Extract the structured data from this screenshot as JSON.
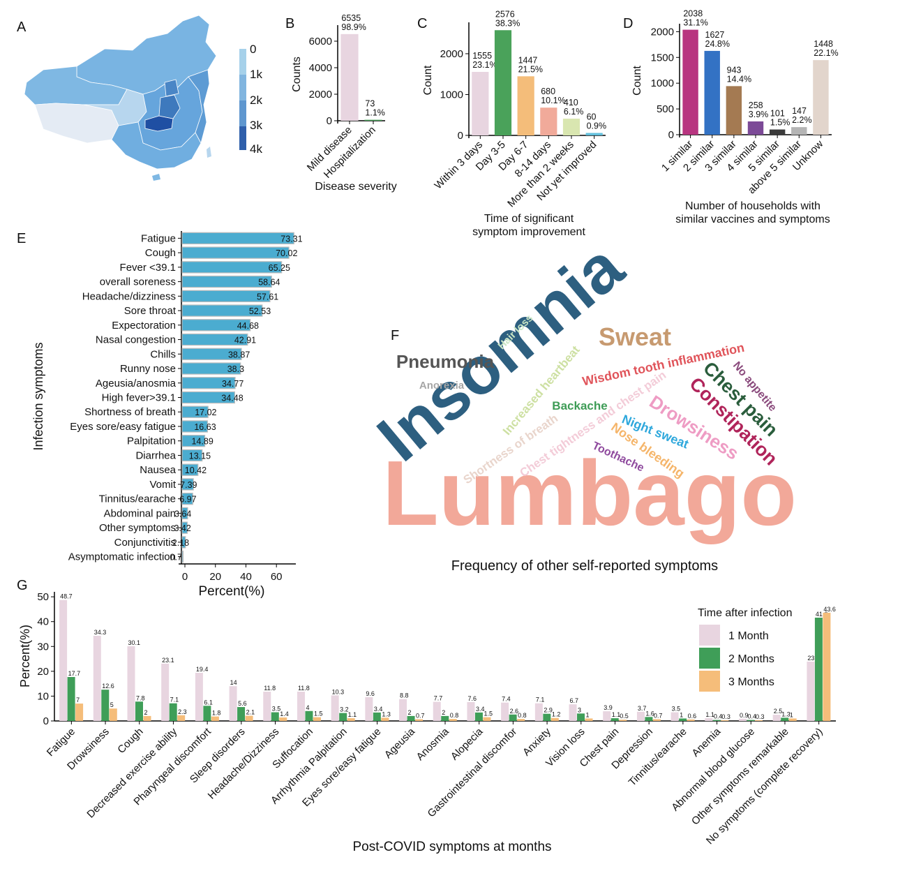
{
  "panels": {
    "A": "A",
    "B": "B",
    "C": "C",
    "D": "D",
    "E": "E",
    "F": "F",
    "G": "G"
  },
  "map": {
    "colorbar_ticks": [
      "0",
      "1k",
      "2k",
      "3k",
      "4k"
    ],
    "colorbar_colors": [
      "#a6d1ea",
      "#81b5df",
      "#5f97cf",
      "#3f79bc",
      "#1f4fa3"
    ]
  },
  "chart_data": [
    {
      "panel": "B",
      "type": "bar",
      "categories": [
        "Mild disease",
        "Hospitalization"
      ],
      "values": [
        6535,
        73
      ],
      "labels": [
        "6535\n98.9%",
        "73\n1.1%"
      ],
      "colors": [
        "#e8d5e0",
        "#4aa25a"
      ],
      "xlabel": "Disease severity",
      "ylabel": "Counts",
      "ylim": [
        0,
        7000
      ],
      "yticks": [
        0,
        2000,
        4000,
        6000
      ],
      "grid": false
    },
    {
      "panel": "C",
      "type": "bar",
      "categories": [
        "Within 3 days",
        "Day 3-5",
        "Day 6-7",
        "8-14 days",
        "More than 2 weeks",
        "Not yet improved"
      ],
      "values": [
        1555,
        2576,
        1447,
        680,
        410,
        60
      ],
      "labels": [
        "1555\n23.1%",
        "2576\n38.3%",
        "1447\n21.5%",
        "680\n10.1%",
        "410\n6.1%",
        "60\n0.9%"
      ],
      "colors": [
        "#e8d5e0",
        "#4aa25a",
        "#f4bd7a",
        "#f1aa9a",
        "#d9e6b0",
        "#64c0dc"
      ],
      "xlabel": "Time of significant\nsymptom improvement",
      "ylabel": "Count",
      "ylim": [
        0,
        2700
      ],
      "yticks": [
        0,
        1000,
        2000
      ],
      "grid": false
    },
    {
      "panel": "D",
      "type": "bar",
      "categories": [
        "1 similar",
        "2 similar",
        "3 similar",
        "4 similar",
        "5 similar",
        "above 5 similar",
        "Unknow"
      ],
      "values": [
        2038,
        1627,
        943,
        258,
        101,
        147,
        1448
      ],
      "labels": [
        "2038\n31.1%",
        "1627\n24.8%",
        "943\n14.4%",
        "258\n3.9%",
        "101\n1.5%",
        "147\n2.2%",
        "1448\n22.1%"
      ],
      "colors": [
        "#b83580",
        "#3372c4",
        "#a47a52",
        "#7c4a97",
        "#3b3b3b",
        "#b5b5b5",
        "#e2d5cc"
      ],
      "xlabel": "Number of households with\nsimilar vaccines and symptoms",
      "ylabel": "Count",
      "ylim": [
        0,
        2100
      ],
      "yticks": [
        0,
        500,
        1000,
        1500,
        2000
      ],
      "grid": false
    },
    {
      "panel": "E",
      "type": "bar",
      "orientation": "horizontal",
      "categories": [
        "Fatigue",
        "Cough",
        "Fever <39.1",
        "overall soreness",
        "Headache/dizziness",
        "Sore throat",
        "Expectoration",
        "Nasal congestion",
        "Chills",
        "Runny nose",
        "Ageusia/anosmia",
        "High fever>39.1",
        "Shortness of breath",
        "Eyes sore/easy fatigue",
        "Palpitation",
        "Diarrhea",
        "Nausea",
        "Vomit",
        "Tinnitus/earache",
        "Abdominal pain",
        "Other symptoms",
        "Conjunctivitis",
        "Asymptomatic infection"
      ],
      "values": [
        73.31,
        70.02,
        65.25,
        58.64,
        57.61,
        52.53,
        44.68,
        42.91,
        38.87,
        38.3,
        34.77,
        34.48,
        17.02,
        16.63,
        14.89,
        13.15,
        10.42,
        7.39,
        6.97,
        3.64,
        3.42,
        2.18,
        0.7
      ],
      "labels": [
        "73.31",
        "70.02",
        "65.25",
        "58.64",
        "57.61",
        "52.53",
        "44.68",
        "42.91",
        "38.87",
        "38.3",
        "34.77",
        "34.48",
        "17.02",
        "16.63",
        "14.89",
        "13.15",
        "10.42",
        "7.39",
        "6.97",
        "3.64",
        "3.42",
        "2.18",
        "0.7"
      ],
      "color": "#4bacd0",
      "xlabel": "Percent(%)",
      "ylabel": "Infection symptoms",
      "xlim": [
        0,
        75
      ],
      "xticks": [
        0,
        20,
        40,
        60
      ],
      "grid": false
    },
    {
      "panel": "F",
      "type": "wordcloud",
      "words": [
        {
          "text": "Lumbago",
          "color": "#f2a899"
        },
        {
          "text": "Insomnia",
          "color": "#2d5f80"
        },
        {
          "text": "Sweat",
          "color": "#c79a70"
        },
        {
          "text": "Pneumonia",
          "color": "#555555"
        },
        {
          "text": "Constipation",
          "color": "#b0245a"
        },
        {
          "text": "Chest pain",
          "color": "#2a5d3c"
        },
        {
          "text": "Drowsiness",
          "color": "#ee9cc4"
        },
        {
          "text": "Wisdom tooth inflammation",
          "color": "#e0545a"
        },
        {
          "text": "Increased heartbeat",
          "color": "#cde0a2"
        },
        {
          "text": "Shortness of breath",
          "color": "#e9d5cc"
        },
        {
          "text": "Chest tightness and chest pain",
          "color": "#f3ccd8"
        },
        {
          "text": "Nose bleeding",
          "color": "#f5b56a"
        },
        {
          "text": "Night sweat",
          "color": "#2fa8dc"
        },
        {
          "text": "Backache",
          "color": "#3e9c56"
        },
        {
          "text": "Toothache",
          "color": "#8f4a9e"
        },
        {
          "text": "No appetite",
          "color": "#8a4a7c"
        },
        {
          "text": "Hair loss",
          "color": "#c9e6c5"
        },
        {
          "text": "Anorexia",
          "color": "#a6a6a6"
        }
      ],
      "title": "Frequency of other self-reported symptoms"
    },
    {
      "panel": "G",
      "type": "bar",
      "categories": [
        "Fatigue",
        "Drowsiness",
        "Cough",
        "Decreased exercise ability",
        "Pharyngeal discomfort",
        "Sleep disorders",
        "Headache/Dizziness",
        "Suffocation",
        "Arrhythmia Palpitation",
        "Eyes sore/easy fatigue",
        "Ageusia",
        "Anosmia",
        "Alopecia",
        "Gastrointestinal discomfor",
        "Anxiety",
        "Vision loss",
        "Chest pain",
        "Depression",
        "Tinnitus/earache",
        "Anemia",
        "Abnormal blood glucose",
        "Other symptoms remarkable",
        "No symptoms (complete recovery)"
      ],
      "series": [
        {
          "name": "1 Month",
          "color": "#e8d5e0",
          "values": [
            48.7,
            34.3,
            30.1,
            23.1,
            19.4,
            14,
            11.8,
            11.8,
            10.3,
            9.6,
            8.8,
            7.7,
            7.6,
            7.4,
            7.1,
            6.7,
            3.9,
            3.7,
            3.5,
            1.1,
            0.9,
            2.5,
            23.9
          ]
        },
        {
          "name": "2 Months",
          "color": "#3f9e58",
          "values": [
            17.7,
            12.6,
            7.8,
            7.1,
            6.1,
            5.6,
            3.5,
            4,
            3.2,
            3.4,
            2,
            2,
            3.4,
            2.6,
            2.9,
            3,
            1.1,
            1.6,
            1,
            0.4,
            0.4,
            1.3,
            41.6
          ]
        },
        {
          "name": "3 Months",
          "color": "#f5bd7a",
          "values": [
            7,
            5,
            2,
            2.3,
            1.8,
            2.1,
            1.4,
            1.5,
            1.1,
            1.3,
            0.7,
            0.8,
            1.5,
            0.8,
            1.2,
            1,
            0.5,
            0.7,
            0.6,
            0.3,
            0.3,
            1,
            43.6
          ]
        }
      ],
      "legend_title": "Time after infection",
      "legend_position": "top-right",
      "xlabel": "Post-COVID symptoms at months",
      "ylabel": "Percent(%)",
      "ylim": [
        0,
        52
      ],
      "yticks": [
        0,
        10,
        20,
        30,
        40,
        50
      ],
      "grid": false
    }
  ]
}
